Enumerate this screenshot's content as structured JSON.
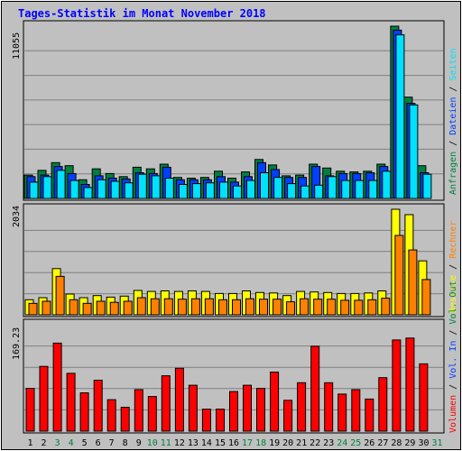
{
  "title": "Tages-Statistik im Monat November 2018",
  "colors": {
    "title": "#0000ff",
    "hits": "#008040",
    "files": "#0040ff",
    "pages": "#00e0ff",
    "visits": "#ffff00",
    "sites": "#ff8000",
    "kbytes": "#ff0000",
    "weekend_label": "#008040",
    "plot_bg": "#c0c0c0",
    "grid": "#808080"
  },
  "days": [
    "1",
    "2",
    "3",
    "4",
    "5",
    "6",
    "7",
    "8",
    "9",
    "10",
    "11",
    "12",
    "13",
    "14",
    "15",
    "16",
    "17",
    "18",
    "19",
    "20",
    "21",
    "22",
    "23",
    "24",
    "25",
    "26",
    "27",
    "28",
    "29",
    "30",
    "31"
  ],
  "weekend_days": [
    3,
    4,
    10,
    11,
    17,
    18,
    24,
    25,
    31
  ],
  "panel1": {
    "ymax_label": "11055",
    "ymax": 11055,
    "legend": [
      {
        "text": "Anfragen",
        "color": "#008040"
      },
      {
        "text": " / ",
        "color": "#000000"
      },
      {
        "text": "Dateien",
        "color": "#0040ff"
      },
      {
        "text": " / ",
        "color": "#000000"
      },
      {
        "text": "Seiten",
        "color": "#00e0ff"
      }
    ]
  },
  "panel2": {
    "ymax_label": "2034",
    "ymax": 2034,
    "legend": [
      {
        "text": "Besuche",
        "color": "#ffff00"
      },
      {
        "text": " / ",
        "color": "#000000"
      },
      {
        "text": "Rechner",
        "color": "#ff8000"
      }
    ]
  },
  "panel3": {
    "ymax_label": "169.23",
    "ymax": 169.23,
    "legend": [
      {
        "text": "Volumen",
        "color": "#ff0000"
      },
      {
        "text": " / ",
        "color": "#000000"
      },
      {
        "text": "Vol. In",
        "color": "#0040ff"
      },
      {
        "text": " / ",
        "color": "#000000"
      },
      {
        "text": "Vol. Out",
        "color": "#008040"
      }
    ]
  },
  "chart_data": [
    {
      "type": "bar",
      "title": "Tages-Statistik im Monat November 2018",
      "categories": [
        "1",
        "2",
        "3",
        "4",
        "5",
        "6",
        "7",
        "8",
        "9",
        "10",
        "11",
        "12",
        "13",
        "14",
        "15",
        "16",
        "17",
        "18",
        "19",
        "20",
        "21",
        "22",
        "23",
        "24",
        "25",
        "26",
        "27",
        "28",
        "29",
        "30"
      ],
      "ylim": [
        0,
        11055
      ],
      "series": [
        {
          "name": "Anfragen",
          "values": [
            1500,
            1800,
            2300,
            2100,
            1200,
            1900,
            1600,
            1400,
            2000,
            1900,
            2200,
            1350,
            1300,
            1350,
            1750,
            1300,
            1700,
            2500,
            2150,
            1450,
            1500,
            2200,
            1950,
            1750,
            1700,
            1750,
            2200,
            11055,
            6500,
            2100
          ]
        },
        {
          "name": "Dateien",
          "values": [
            1400,
            1500,
            2050,
            1600,
            900,
            1450,
            1300,
            1250,
            1650,
            1600,
            2000,
            1200,
            1200,
            1200,
            1400,
            1050,
            1400,
            2300,
            1850,
            1350,
            1350,
            2050,
            1450,
            1600,
            1600,
            1650,
            2050,
            10800,
            6100,
            1650
          ]
        },
        {
          "name": "Seiten",
          "values": [
            1050,
            1400,
            1800,
            1150,
            700,
            1200,
            1100,
            1000,
            1550,
            1450,
            1300,
            900,
            950,
            1000,
            1050,
            800,
            1150,
            1650,
            1350,
            950,
            800,
            850,
            1400,
            1150,
            1150,
            1150,
            1750,
            10500,
            6000,
            1550
          ]
        }
      ]
    },
    {
      "type": "bar",
      "categories": [
        "1",
        "2",
        "3",
        "4",
        "5",
        "6",
        "7",
        "8",
        "9",
        "10",
        "11",
        "12",
        "13",
        "14",
        "15",
        "16",
        "17",
        "18",
        "19",
        "20",
        "21",
        "22",
        "23",
        "24",
        "25",
        "26",
        "27",
        "28",
        "29",
        "30"
      ],
      "ylim": [
        0,
        2034
      ],
      "series": [
        {
          "name": "Besuche",
          "values": [
            290,
            330,
            890,
            400,
            330,
            370,
            340,
            360,
            470,
            450,
            460,
            450,
            460,
            450,
            410,
            410,
            460,
            430,
            420,
            370,
            450,
            440,
            430,
            410,
            410,
            420,
            460,
            2034,
            1930,
            1040
          ]
        },
        {
          "name": "Rechner",
          "values": [
            220,
            260,
            740,
            290,
            220,
            260,
            240,
            260,
            330,
            310,
            310,
            300,
            310,
            310,
            290,
            290,
            310,
            300,
            300,
            250,
            310,
            300,
            300,
            280,
            280,
            290,
            320,
            1530,
            1250,
            680
          ]
        }
      ]
    },
    {
      "type": "bar",
      "categories": [
        "1",
        "2",
        "3",
        "4",
        "5",
        "6",
        "7",
        "8",
        "9",
        "10",
        "11",
        "12",
        "13",
        "14",
        "15",
        "16",
        "17",
        "18",
        "19",
        "20",
        "21",
        "22",
        "23",
        "24",
        "25",
        "26",
        "27",
        "28",
        "29",
        "30"
      ],
      "ylim": [
        0,
        169.23
      ],
      "series": [
        {
          "name": "Volumen",
          "values": [
            68,
            103,
            140,
            92,
            61,
            81,
            50,
            38,
            66,
            55,
            88,
            100,
            73,
            35,
            35,
            63,
            73,
            68,
            94,
            49,
            77,
            135,
            77,
            59,
            66,
            51,
            85,
            145,
            148,
            107
          ]
        }
      ]
    }
  ]
}
